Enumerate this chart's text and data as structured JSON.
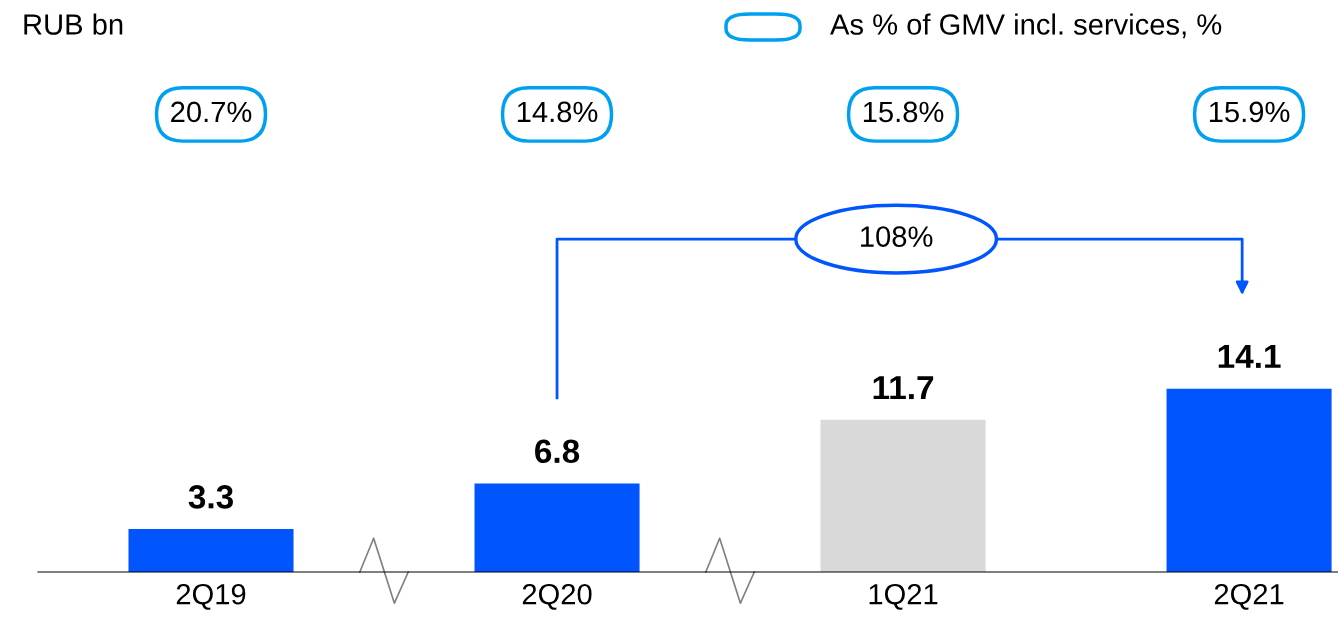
{
  "chart_data": {
    "type": "bar",
    "categories": [
      "2Q19",
      "2Q20",
      "1Q21",
      "2Q21"
    ],
    "values": [
      3.3,
      6.8,
      11.7,
      14.1
    ],
    "colors": [
      "#0055ff",
      "#0055ff",
      "#d9d9d9",
      "#0055ff"
    ],
    "data_labels": true,
    "legend_title": "As % of GMV incl. services, %",
    "annotations": [
      "RUB bn",
      "20.7%",
      "14.8%",
      "15.8%",
      "15.9%",
      "108%"
    ]
  }
}
